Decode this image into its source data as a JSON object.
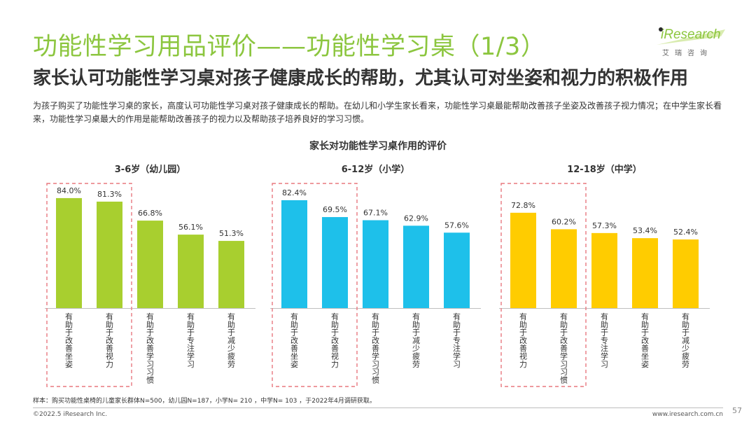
{
  "header": {
    "title": "功能性学习用品评价——功能性学习桌（1/3）",
    "subtitle": "家长认可功能性学习桌对孩子健康成长的帮助，尤其认可对坐姿和视力的积极作用",
    "description": "为孩子购买了功能性学习桌的家长，高度认可功能性学习桌对孩子健康成长的帮助。在幼儿和小学生家长看来，功能性学习桌最能帮助改善孩子坐姿及改善孩子视力情况；在中学生家长看来，功能性学习桌最大的作用是能帮助改善孩子的视力以及帮助孩子培养良好的学习习惯。"
  },
  "logo": {
    "brand": "iResearch",
    "tagline": "艾瑞咨询"
  },
  "chart_data": {
    "type": "bar",
    "title": "家长对功能性学习桌作用的评价",
    "unit": "%",
    "groups": [
      {
        "name": "3-6岁（幼儿园）",
        "color": "#a8cf2f",
        "categories": [
          "有助于改善坐姿",
          "有助于改善视力",
          "有助于改善学习习惯",
          "有助于专注学习",
          "有助于减少疲劳"
        ],
        "values": [
          84.0,
          81.3,
          66.8,
          56.1,
          51.3
        ],
        "highlighted": 2
      },
      {
        "name": "6-12岁（小学）",
        "color": "#1ec0ea",
        "categories": [
          "有助于改善坐姿",
          "有助于改善视力",
          "有助于改善学习习惯",
          "有助于减少疲劳",
          "有助于专注学习"
        ],
        "values": [
          82.4,
          69.5,
          67.1,
          62.9,
          57.6
        ],
        "highlighted": 2
      },
      {
        "name": "12-18岁（中学）",
        "color": "#ffcc00",
        "categories": [
          "有助于改善视力",
          "有助于改善学习习惯",
          "有助于专注学习",
          "有助于改善坐姿",
          "有助于减少疲劳"
        ],
        "values": [
          72.8,
          60.2,
          57.3,
          53.4,
          52.4
        ],
        "highlighted": 2
      }
    ],
    "highlight_color": "#e8787f"
  },
  "footer": {
    "note": "样本：购买功能性桌椅的儿童家长群体N=500，幼儿园N=187，小学N= 210 ，中学N= 103 ，于2022年4月调研获取。",
    "copyright": "©2022.5 iResearch Inc.",
    "website": "www.iresearch.com.cn",
    "page": "57"
  }
}
